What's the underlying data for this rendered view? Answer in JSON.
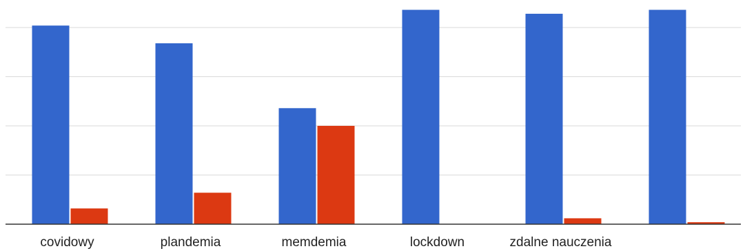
{
  "chart_data": {
    "type": "bar",
    "categories": [
      "covidowy",
      "plandemia",
      "memdemia",
      "lockdown",
      "zdalne nauczenia",
      null
    ],
    "series": [
      {
        "color": "#3366cc",
        "values": [
          101,
          92,
          59,
          109,
          107,
          109
        ]
      },
      {
        "color": "#dc3912",
        "values": [
          8,
          16,
          50,
          0,
          3,
          1
        ]
      }
    ],
    "ylim": [
      0,
      114
    ],
    "yticks": [
      0,
      25,
      50,
      75,
      100
    ],
    "grid": true
  }
}
